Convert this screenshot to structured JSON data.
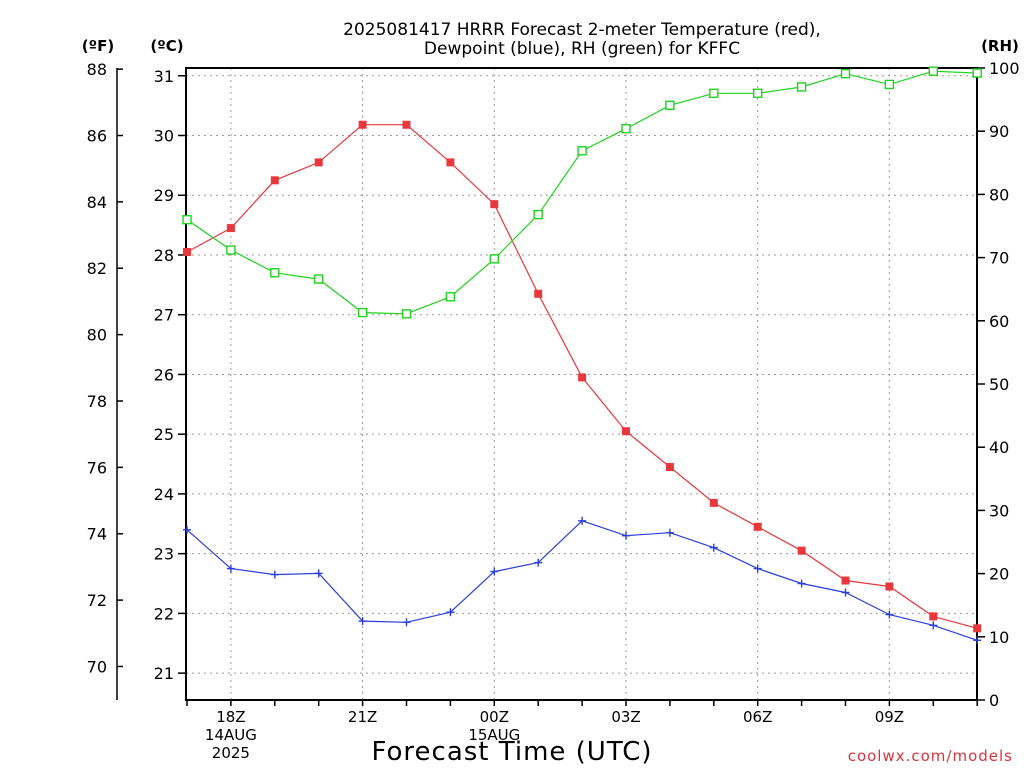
{
  "chart_data": {
    "type": "line",
    "title_line1": "2025081417 HRRR Forecast 2-meter Temperature (red),",
    "title_line2": "Dewpoint (blue), RH (green) for KFFC",
    "xlabel": "Forecast Time (UTC)",
    "credit": "coolwx.com/models",
    "unit_labels": {
      "f": "(ºF)",
      "c": "(ºC)",
      "rh": "(RH)"
    },
    "x": [
      "17Z",
      "18Z",
      "19Z",
      "20Z",
      "21Z",
      "22Z",
      "23Z",
      "00Z",
      "01Z",
      "02Z",
      "03Z",
      "04Z",
      "05Z",
      "06Z",
      "07Z",
      "08Z",
      "09Z",
      "10Z",
      "11Z"
    ],
    "x_tick_labels": [
      {
        "x": "18Z",
        "lines": [
          "18Z",
          "14AUG",
          "2025"
        ]
      },
      {
        "x": "21Z",
        "lines": [
          "21Z"
        ]
      },
      {
        "x": "00Z",
        "lines": [
          "00Z",
          "15AUG"
        ]
      },
      {
        "x": "03Z",
        "lines": [
          "03Z"
        ]
      },
      {
        "x": "06Z",
        "lines": [
          "06Z"
        ]
      },
      {
        "x": "09Z",
        "lines": [
          "09Z"
        ]
      }
    ],
    "y_left_c": {
      "ticks": [
        21,
        22,
        23,
        24,
        25,
        26,
        27,
        28,
        29,
        30,
        31
      ],
      "range": [
        20.55,
        31.13
      ]
    },
    "y_left_f": {
      "ticks": [
        70,
        72,
        74,
        76,
        78,
        80,
        82,
        84,
        86,
        88
      ]
    },
    "y_right_rh": {
      "ticks": [
        0,
        10,
        20,
        30,
        40,
        50,
        60,
        70,
        80,
        90,
        100
      ],
      "range": [
        0,
        100
      ]
    },
    "grid": true,
    "series": [
      {
        "name": "Temperature",
        "axis": "c",
        "color": "#e8383c",
        "marker": "filled-square",
        "values": [
          28.05,
          28.45,
          29.25,
          29.55,
          30.18,
          30.18,
          29.55,
          28.85,
          27.35,
          25.95,
          25.05,
          24.45,
          23.85,
          23.45,
          23.05,
          22.55,
          22.45,
          21.95,
          21.75
        ]
      },
      {
        "name": "Dewpoint",
        "axis": "c",
        "color": "#2a3fdc",
        "marker": "plus",
        "values": [
          23.4,
          22.75,
          22.65,
          22.67,
          21.87,
          21.85,
          22.02,
          22.7,
          22.85,
          23.55,
          23.3,
          23.35,
          23.1,
          22.75,
          22.5,
          22.35,
          21.98,
          21.8,
          21.55
        ]
      },
      {
        "name": "RH",
        "axis": "rh",
        "color": "#1fd21f",
        "marker": "open-square",
        "values": [
          76,
          71.2,
          67.6,
          66.6,
          61.3,
          61.1,
          63.8,
          69.8,
          76.8,
          86.9,
          90.4,
          94.1,
          96,
          96,
          97,
          99.1,
          97.4,
          99.5,
          99.2
        ]
      }
    ]
  }
}
